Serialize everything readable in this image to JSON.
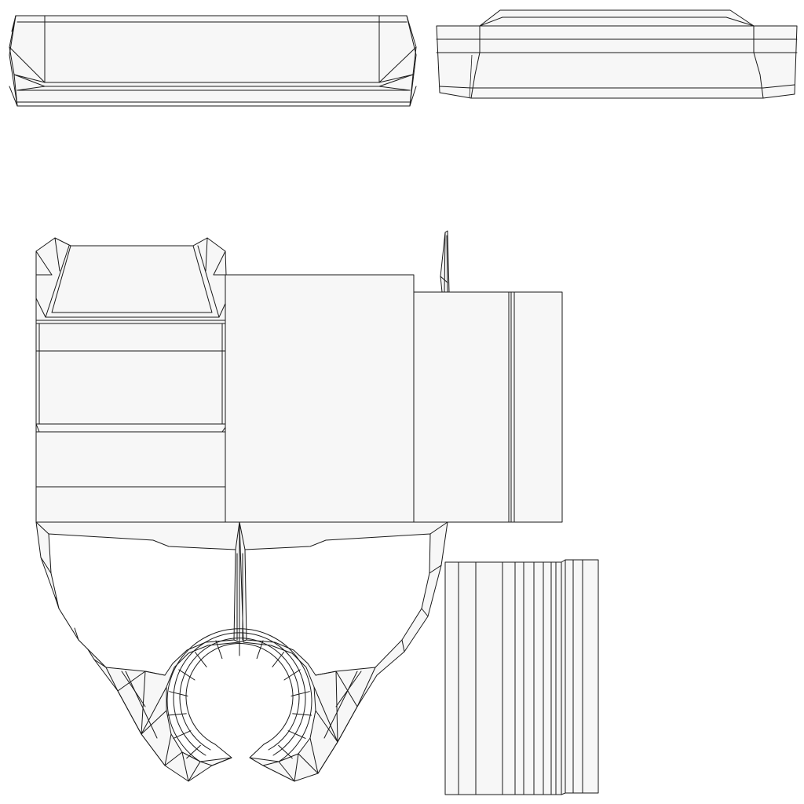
{
  "image": {
    "kind": "uv-layout-wireframe",
    "text": []
  },
  "colors": {
    "background": "#ffffff",
    "face_fill": "#f7f7f7",
    "edge": "#1a1a1a"
  },
  "islands": [
    {
      "name": "top-left-strip"
    },
    {
      "name": "top-right-strip"
    },
    {
      "name": "left-panel"
    },
    {
      "name": "center-panel"
    },
    {
      "name": "right-panel"
    },
    {
      "name": "spike"
    },
    {
      "name": "lower-yoke-left"
    },
    {
      "name": "lower-yoke-right"
    },
    {
      "name": "ring"
    },
    {
      "name": "bottom-strip-block"
    }
  ]
}
